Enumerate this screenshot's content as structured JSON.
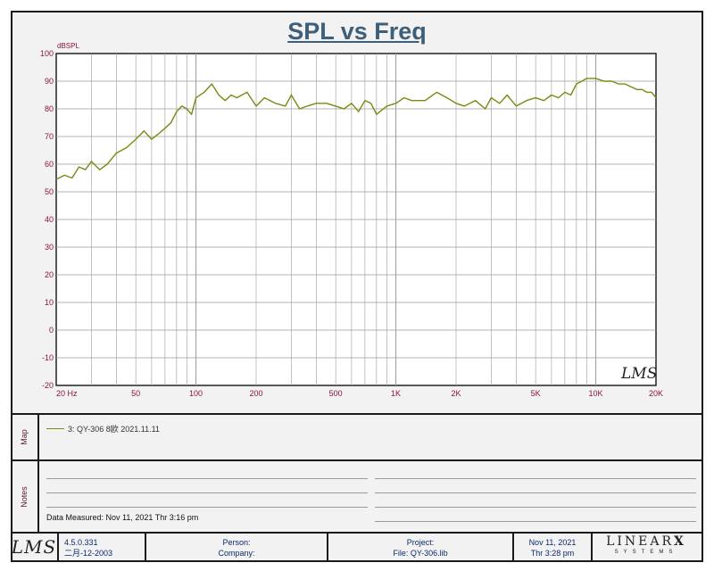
{
  "title": "SPL vs Freq",
  "colors": {
    "trace": "#7a8a10",
    "axis_label": "#8a1538",
    "title": "#3e5f7a",
    "grid": "#9a9a9a"
  },
  "chart_data": {
    "type": "line",
    "title": "SPL vs Freq",
    "xlabel": "",
    "ylabel": "dBSPL",
    "xscale": "log",
    "xlim": [
      20,
      20000
    ],
    "ylim": [
      -20,
      100
    ],
    "grid": true,
    "x_tick_labels": [
      "20  Hz",
      "50",
      "100",
      "200",
      "500",
      "1K",
      "2K",
      "5K",
      "10K",
      "20K"
    ],
    "x_tick_values": [
      20,
      50,
      100,
      200,
      500,
      1000,
      2000,
      5000,
      10000,
      20000
    ],
    "y_ticks": [
      100,
      90,
      80,
      70,
      60,
      50,
      40,
      30,
      20,
      10,
      0,
      -10,
      -20
    ],
    "series": [
      {
        "name": "3: QY-306 8欧 2021.11.11",
        "x": [
          20,
          22,
          24,
          26,
          28,
          30,
          33,
          36,
          40,
          45,
          50,
          55,
          60,
          65,
          70,
          75,
          80,
          85,
          90,
          95,
          100,
          110,
          120,
          130,
          140,
          150,
          160,
          180,
          200,
          220,
          250,
          280,
          300,
          330,
          360,
          400,
          450,
          500,
          550,
          600,
          650,
          700,
          750,
          800,
          900,
          1000,
          1100,
          1200,
          1400,
          1600,
          1800,
          2000,
          2200,
          2500,
          2800,
          3000,
          3300,
          3600,
          4000,
          4500,
          5000,
          5500,
          6000,
          6500,
          7000,
          7500,
          8000,
          8500,
          9000,
          10000,
          11000,
          12000,
          13000,
          14000,
          15000,
          16000,
          17000,
          18000,
          19000,
          20000
        ],
        "y": [
          54.5,
          56,
          55,
          59,
          58,
          61,
          58,
          60,
          64,
          66,
          69,
          72,
          69,
          71,
          73,
          75,
          79,
          81,
          80,
          78,
          84,
          86,
          89,
          85,
          83,
          85,
          84,
          86,
          81,
          84,
          82,
          81,
          85,
          80,
          81,
          82,
          82,
          81,
          80,
          82,
          79,
          83,
          82,
          78,
          81,
          82,
          84,
          83,
          83,
          86,
          84,
          82,
          81,
          83,
          80,
          84,
          82,
          85,
          81,
          83,
          84,
          83,
          85,
          84,
          86,
          85,
          89,
          90,
          91,
          91,
          90,
          90,
          89,
          89,
          88,
          87,
          87,
          86,
          86,
          84
        ]
      }
    ],
    "watermark": "LMS"
  },
  "map": {
    "label": "Map",
    "entry": "3: QY-306 8欧 2021.11.11"
  },
  "notes": {
    "label": "Notes",
    "measured": "Data Measured: Nov 11, 2021  Thr  3:16 pm"
  },
  "footer": {
    "logo": "LMS",
    "version": "4.5.0.331",
    "version_date": "二月-12-2003",
    "person": "Person:",
    "company": "Company:",
    "project": "Project:",
    "file": "File: QY-306.lib",
    "date": "Nov 11, 2021",
    "time": "Thr  3:28 pm",
    "brand": "LINEAR",
    "brand_x": "X",
    "brand_sub": "SYSTEMS"
  }
}
